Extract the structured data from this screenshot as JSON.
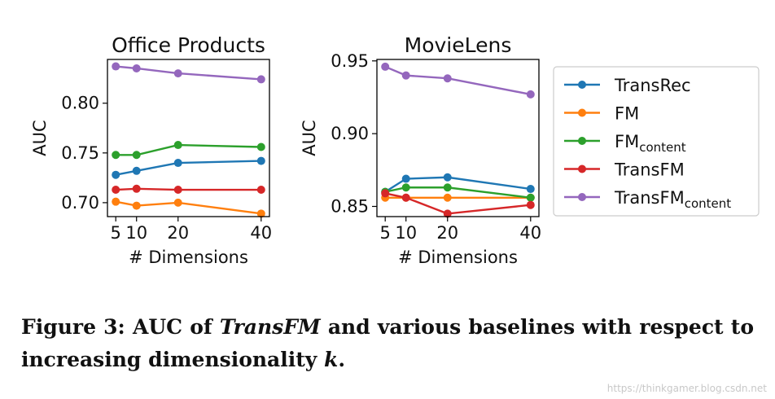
{
  "chart_data": [
    {
      "type": "line",
      "title": "Office Products",
      "xlabel": "# Dimensions",
      "ylabel": "AUC",
      "x": [
        5,
        10,
        20,
        40
      ],
      "xticks": [
        "5",
        "10",
        "20",
        "40"
      ],
      "yticks": [
        "0.70",
        "0.75",
        "0.80"
      ],
      "xlim": [
        3,
        42
      ],
      "ylim": [
        0.686,
        0.844
      ],
      "grid": false,
      "series": [
        {
          "name": "TransRec",
          "values": [
            0.728,
            0.732,
            0.74,
            0.742
          ]
        },
        {
          "name": "FM",
          "values": [
            0.701,
            0.697,
            0.7,
            0.689
          ]
        },
        {
          "name": "FM_content",
          "values": [
            0.748,
            0.748,
            0.758,
            0.756
          ]
        },
        {
          "name": "TransFM",
          "values": [
            0.713,
            0.714,
            0.713,
            0.713
          ]
        },
        {
          "name": "TransFM_content",
          "values": [
            0.837,
            0.835,
            0.83,
            0.824
          ]
        }
      ]
    },
    {
      "type": "line",
      "title": "MovieLens",
      "xlabel": "# Dimensions",
      "ylabel": "AUC",
      "x": [
        5,
        10,
        20,
        40
      ],
      "xticks": [
        "5",
        "10",
        "20",
        "40"
      ],
      "yticks": [
        "0.85",
        "0.90",
        "0.95"
      ],
      "xlim": [
        3,
        42
      ],
      "ylim": [
        0.843,
        0.951
      ],
      "grid": false,
      "series": [
        {
          "name": "TransRec",
          "values": [
            0.86,
            0.869,
            0.87,
            0.862
          ]
        },
        {
          "name": "FM",
          "values": [
            0.856,
            0.856,
            0.856,
            0.856
          ]
        },
        {
          "name": "FM_content",
          "values": [
            0.86,
            0.863,
            0.863,
            0.856
          ]
        },
        {
          "name": "TransFM",
          "values": [
            0.859,
            0.856,
            0.845,
            0.851
          ]
        },
        {
          "name": "TransFM_content",
          "values": [
            0.946,
            0.94,
            0.938,
            0.927
          ]
        }
      ]
    }
  ],
  "legend": {
    "placement": "right",
    "entries": [
      {
        "main": "TransRec",
        "sub": "",
        "color": "#1f77b4"
      },
      {
        "main": "FM",
        "sub": "",
        "color": "#ff7f0e"
      },
      {
        "main": "FM",
        "sub": "content",
        "color": "#2ca02c"
      },
      {
        "main": "TransFM",
        "sub": "",
        "color": "#d62728"
      },
      {
        "main": "TransFM",
        "sub": "content",
        "color": "#9467bd"
      }
    ]
  },
  "colors": [
    "#1f77b4",
    "#ff7f0e",
    "#2ca02c",
    "#d62728",
    "#9467bd"
  ],
  "caption": {
    "prefix": "Figure 3: AUC of ",
    "emphasis": "TransFM",
    "suffix": " and various baselines with respect to increasing dimensionality ",
    "variable": "k",
    "end": "."
  },
  "watermark": "https://thinkgamer.blog.csdn.net"
}
